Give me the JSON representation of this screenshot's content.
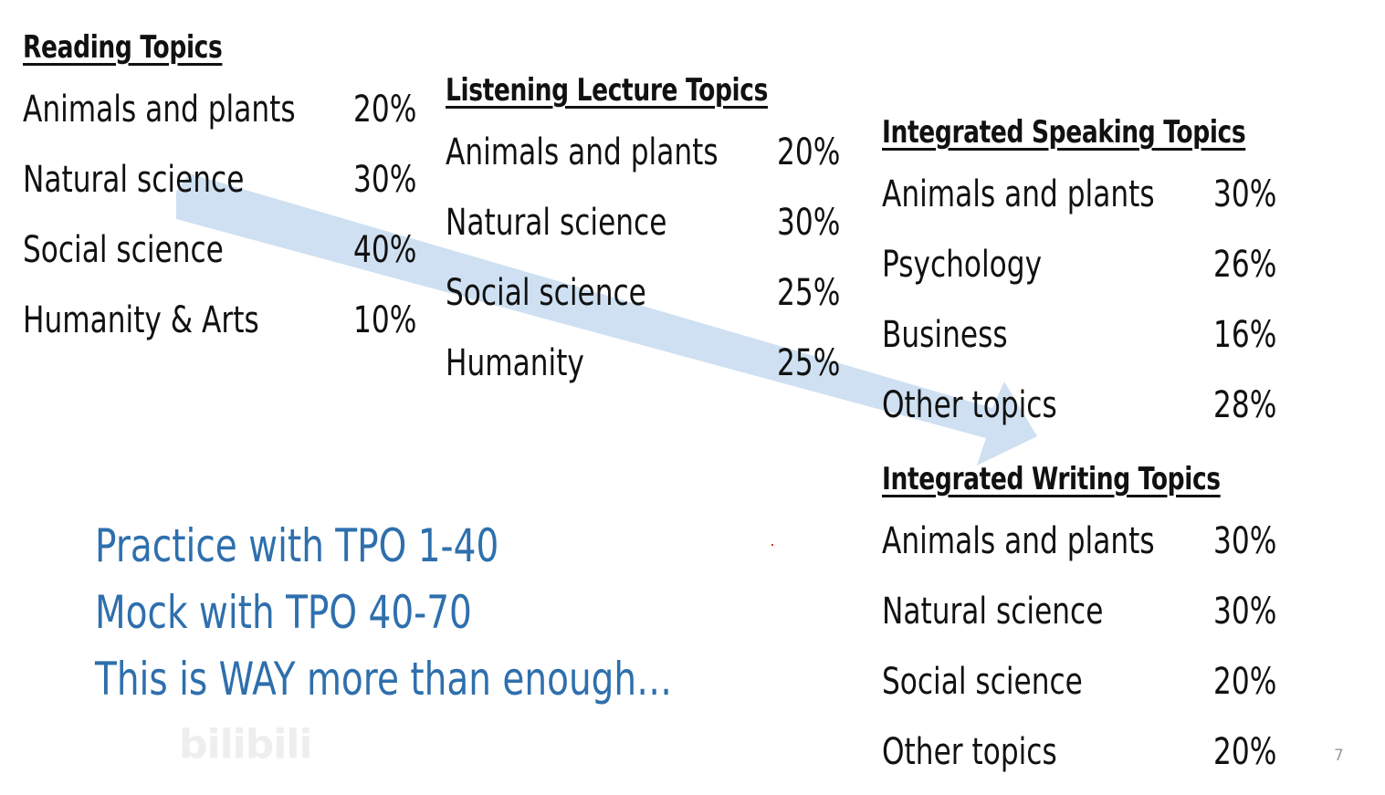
{
  "reading": {
    "heading": "Reading Topics",
    "rows": [
      {
        "label": "Animals and plants",
        "value": "20%"
      },
      {
        "label": "Natural science",
        "value": "30%"
      },
      {
        "label": "Social science",
        "value": "40%"
      },
      {
        "label": "Humanity & Arts",
        "value": "10%"
      }
    ]
  },
  "listening": {
    "heading": "Listening Lecture Topics",
    "rows": [
      {
        "label": "Animals and plants",
        "value": "20%"
      },
      {
        "label": "Natural science",
        "value": "30%"
      },
      {
        "label": "Social science",
        "value": "25%"
      },
      {
        "label": "Humanity",
        "value": "25%"
      }
    ]
  },
  "speaking": {
    "heading": "Integrated Speaking Topics",
    "rows": [
      {
        "label": "Animals and plants",
        "value": "30%"
      },
      {
        "label": "Psychology",
        "value": "26%"
      },
      {
        "label": "Business",
        "value": "16%"
      },
      {
        "label": "Other topics",
        "value": "28%"
      }
    ]
  },
  "writing": {
    "heading": "Integrated Writing Topics",
    "rows": [
      {
        "label": "Animals and plants",
        "value": "30%"
      },
      {
        "label": "Natural science",
        "value": "30%"
      },
      {
        "label": "Social science",
        "value": "20%"
      },
      {
        "label": "Other topics",
        "value": "20%"
      }
    ]
  },
  "note": {
    "lines": [
      "Practice with TPO 1-40",
      "Mock with TPO 40-70",
      "This is WAY more than enough…"
    ]
  },
  "slide_number": "7",
  "watermark": "bilibili",
  "colors": {
    "note_text": "#2e6fad",
    "arrow": "#c9ddef",
    "text": "#111111"
  }
}
